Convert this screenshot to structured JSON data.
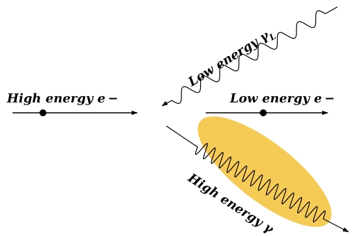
{
  "labels": {
    "incoming_electron": "High energy e −",
    "outgoing_electron": "Low energy  e −",
    "incoming_photon": "Low energy γ",
    "incoming_photon_sub": "L",
    "outgoing_photon": "High energy γ"
  },
  "colors": {
    "ink": "#000000",
    "highlight": "#f5c84c"
  }
}
